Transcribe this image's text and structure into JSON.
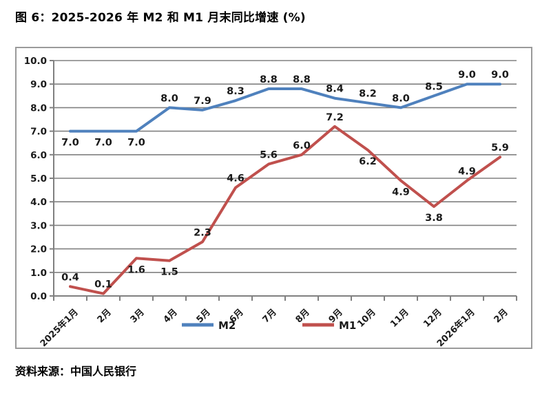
{
  "title": "图 6：2025-2026 年 M2 和 M1 月末同比增速 (%)",
  "source": "资料来源：中国人民银行",
  "colors": {
    "m2_line": "#4F81BD",
    "m1_line": "#C0504D",
    "gridline": "#808080",
    "axis": "#808080",
    "frame_border": "#9a9a9a",
    "label_text": "#1a1a1a",
    "background": "#ffffff"
  },
  "chart_data": {
    "type": "line",
    "title": "图 6：2025-2026 年 M2 和 M1 月末同比增速 (%)",
    "categories": [
      "2025年1月",
      "2月",
      "3月",
      "4月",
      "5月",
      "6月",
      "7月",
      "8月",
      "9月",
      "10月",
      "11月",
      "12月",
      "2026年1月",
      "2月"
    ],
    "series": [
      {
        "name": "M2",
        "color": "#4F81BD",
        "values": [
          7.0,
          7.0,
          7.0,
          8.0,
          7.9,
          8.3,
          8.8,
          8.8,
          8.4,
          8.2,
          8.0,
          8.5,
          9.0,
          9.0
        ],
        "label_pos": [
          "below",
          "below",
          "below",
          "above",
          "above",
          "above",
          "above",
          "above",
          "above",
          "above",
          "above",
          "above",
          "above",
          "above"
        ]
      },
      {
        "name": "M1",
        "color": "#C0504D",
        "values": [
          0.4,
          0.1,
          1.6,
          1.5,
          2.3,
          4.6,
          5.6,
          6.0,
          7.2,
          6.2,
          4.9,
          3.8,
          4.9,
          5.9
        ],
        "label_pos": [
          "above",
          "above",
          "below",
          "below",
          "above",
          "above",
          "above",
          "above",
          "above",
          "below",
          "below",
          "below",
          "above",
          "above"
        ]
      }
    ],
    "xlabel": "",
    "ylabel": "",
    "ylim": [
      0,
      10
    ],
    "ytick_step": 1.0,
    "ytick_labels": [
      "0.0",
      "1.0",
      "2.0",
      "3.0",
      "4.0",
      "5.0",
      "6.0",
      "7.0",
      "8.0",
      "9.0",
      "10.0"
    ],
    "grid": true,
    "legend_position": "bottom",
    "data_labels_shown": true
  }
}
